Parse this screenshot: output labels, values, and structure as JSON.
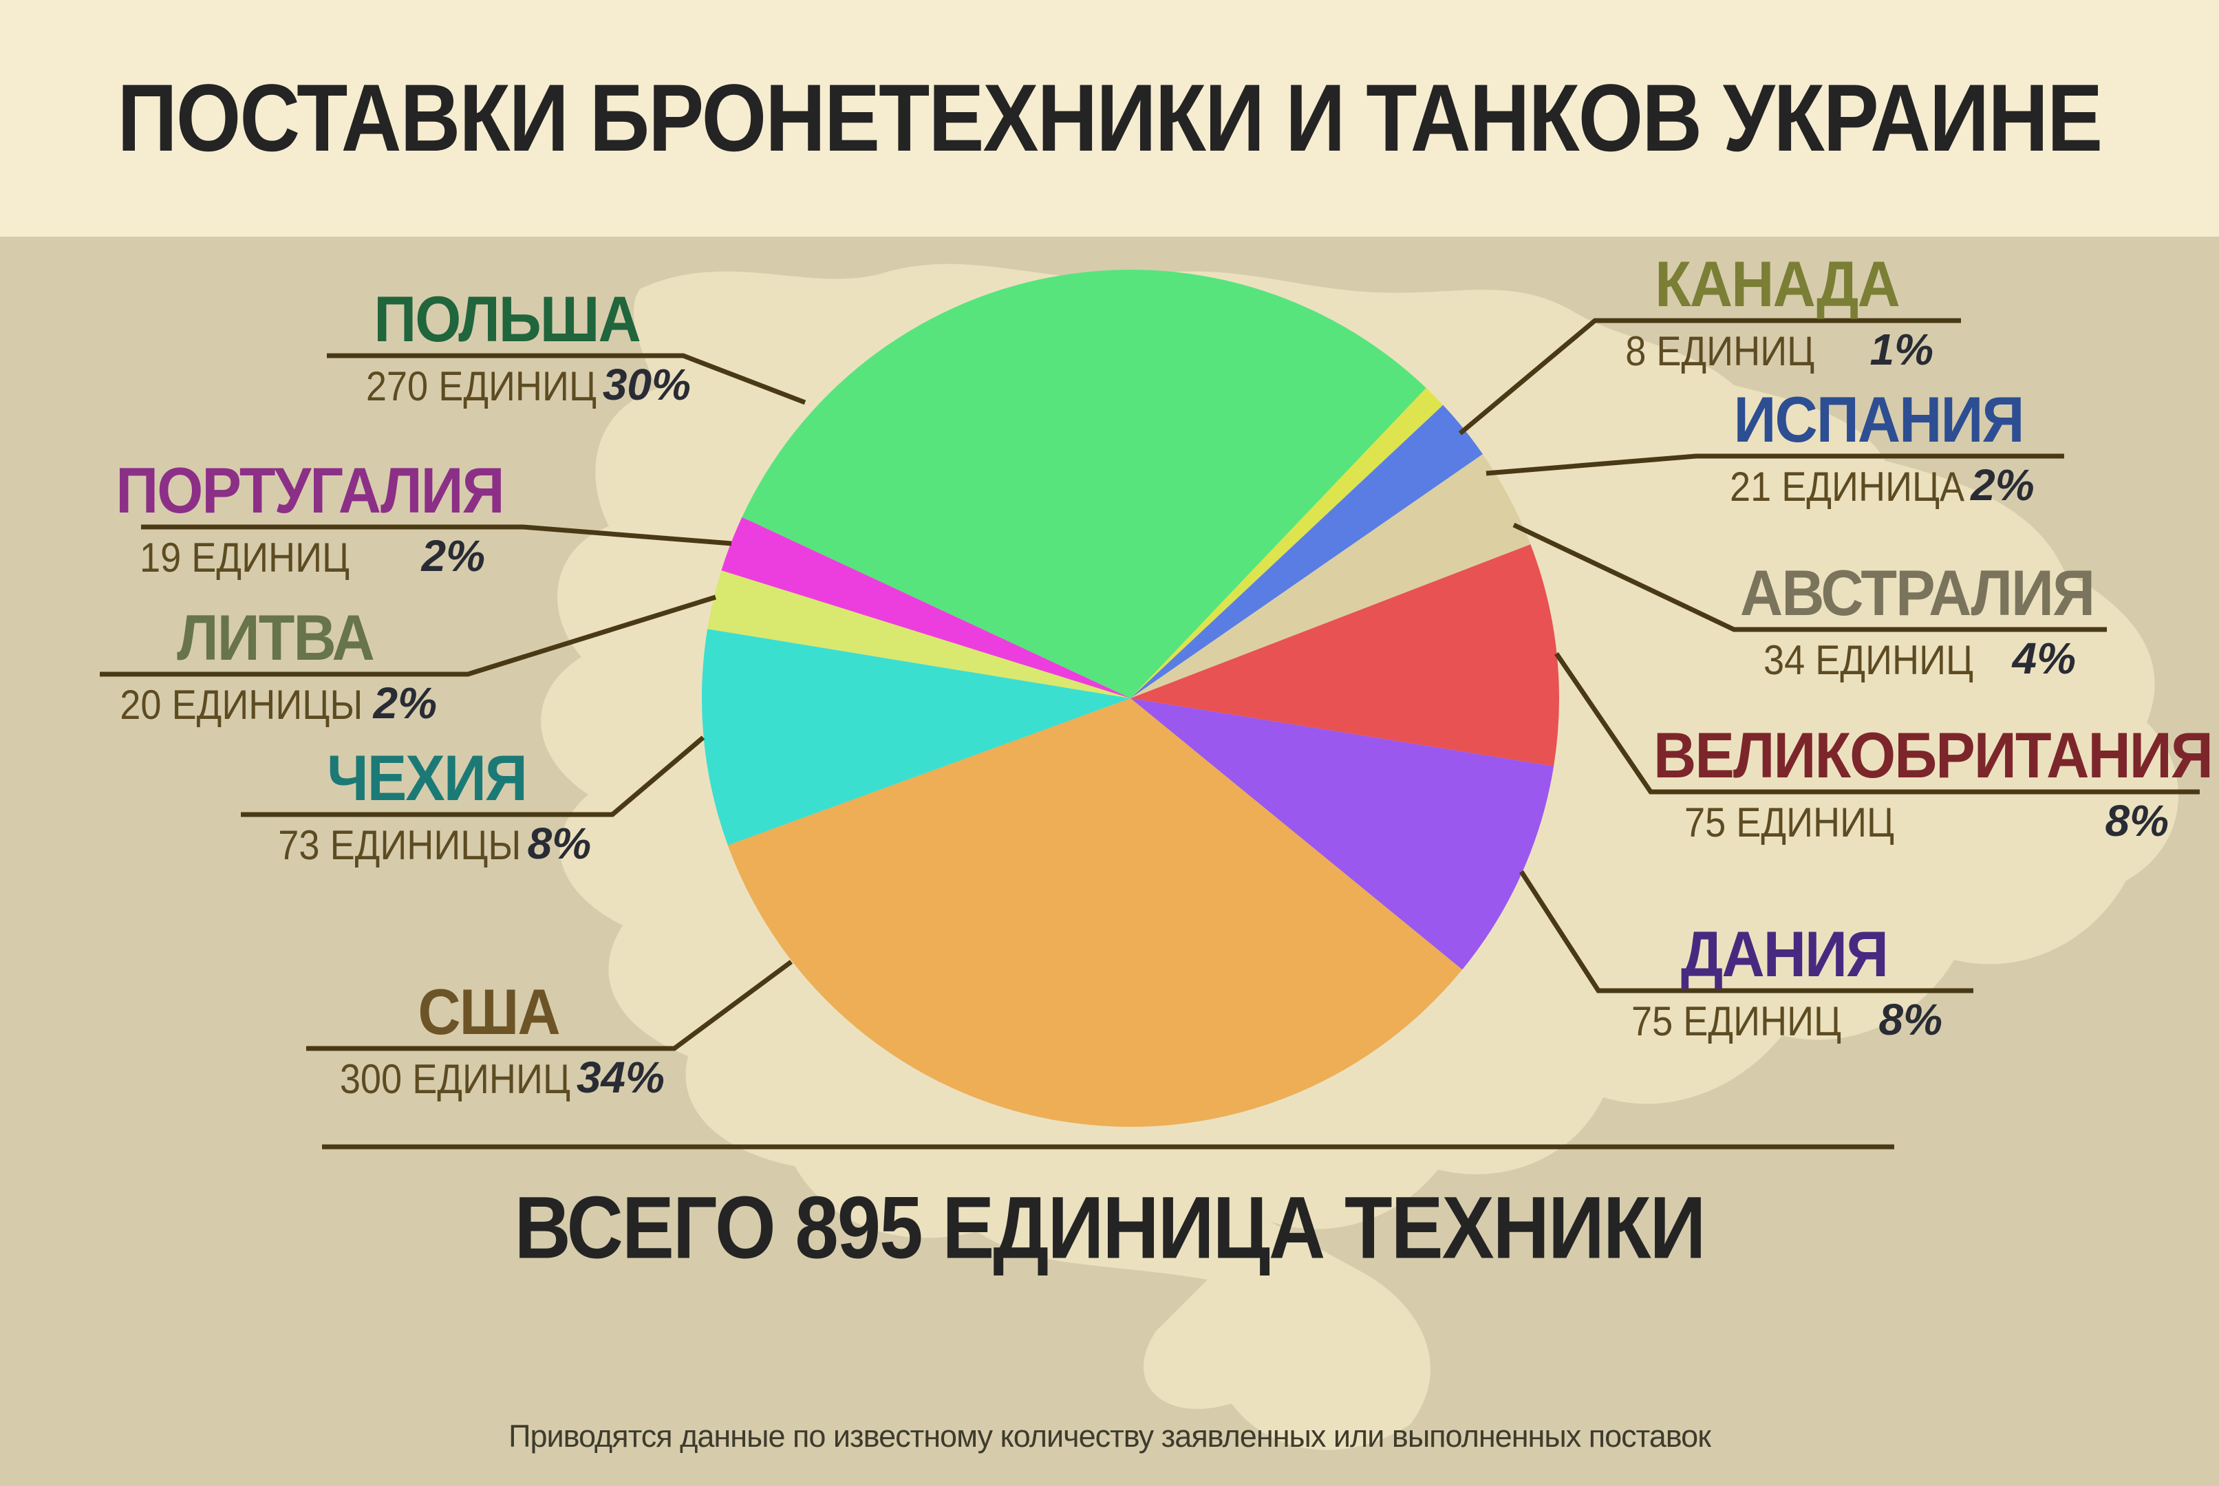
{
  "title": "ПОСТАВКИ БРОНЕТЕХНИКИ И ТАНКОВ УКРАИНЕ",
  "summary": {
    "total_label": "ВСЕГО 895 ЕДИНИЦА ТЕХНИКИ"
  },
  "footnote": "Приводятся данные по известному количеству заявленных или выполненных поставок",
  "chart_data": {
    "type": "pie",
    "title": "ПОСТАВКИ БРОНЕТЕХНИКИ И ТАНКОВ УКРАИНЕ",
    "total_units": 895,
    "start_angle_deg": 155,
    "direction": "clockwise",
    "legend_position": "callout-labels",
    "slices": [
      {
        "id": "poland",
        "country": "ПОЛЬША",
        "units": 270,
        "units_label": "270 ЕДИНИЦ",
        "percent": 30,
        "percent_label": "30%",
        "color": "#57e47d",
        "label_color": "#20653c",
        "side": "left"
      },
      {
        "id": "canada",
        "country": "КАНАДА",
        "units": 8,
        "units_label": "8 ЕДИНИЦ",
        "percent": 1,
        "percent_label": "1%",
        "color": "#dde44e",
        "label_color": "#7b7e35",
        "side": "right"
      },
      {
        "id": "spain",
        "country": "ИСПАНИЯ",
        "units": 21,
        "units_label": "21 ЕДИНИЦА",
        "percent": 2,
        "percent_label": "2%",
        "color": "#5a7de4",
        "label_color": "#2d4e92",
        "side": "right"
      },
      {
        "id": "australia",
        "country": "АВСТРАЛИЯ",
        "units": 34,
        "units_label": "34 ЕДИНИЦ",
        "percent": 4,
        "percent_label": "4%",
        "color": "#dcd0a2",
        "label_color": "#7a745c",
        "side": "right"
      },
      {
        "id": "uk",
        "country": "ВЕЛИКОБРИТАНИЯ",
        "units": 75,
        "units_label": "75 ЕДИНИЦ",
        "percent": 8,
        "percent_label": "8%",
        "color": "#e85252",
        "label_color": "#7c262b",
        "side": "right"
      },
      {
        "id": "denmark",
        "country": "ДАНИЯ",
        "units": 75,
        "units_label": "75 ЕДИНИЦ",
        "percent": 8,
        "percent_label": "8%",
        "color": "#9a58ee",
        "label_color": "#472a80",
        "side": "right"
      },
      {
        "id": "usa",
        "country": "США",
        "units": 300,
        "units_label": "300 ЕДИНИЦ",
        "percent": 34,
        "percent_label": "34%",
        "color": "#edae55",
        "label_color": "#6d5427",
        "side": "left"
      },
      {
        "id": "czech",
        "country": "ЧЕХИЯ",
        "units": 73,
        "units_label": "73 ЕДИНИЦЫ",
        "percent": 8,
        "percent_label": "8%",
        "color": "#3adfd0",
        "label_color": "#1b7a75",
        "side": "left"
      },
      {
        "id": "lithuania",
        "country": "ЛИТВА",
        "units": 20,
        "units_label": "20 ЕДИНИЦЫ",
        "percent": 2,
        "percent_label": "2%",
        "color": "#d9e86f",
        "label_color": "#68744a",
        "side": "left"
      },
      {
        "id": "portugal",
        "country": "ПОРТУГАЛИЯ",
        "units": 19,
        "units_label": "19 ЕДИНИЦ",
        "percent": 2,
        "percent_label": "2%",
        "color": "#ec3ede",
        "label_color": "#8c2f87",
        "side": "left"
      }
    ]
  },
  "colors": {
    "header_bg": "#f6ecd0",
    "page_bg": "#d6ccac",
    "map_fill": "#ece1bf",
    "leader_line": "#493a15",
    "title_text": "#242424",
    "units_text": "#5d4b22",
    "percent_text": "#292c34"
  }
}
